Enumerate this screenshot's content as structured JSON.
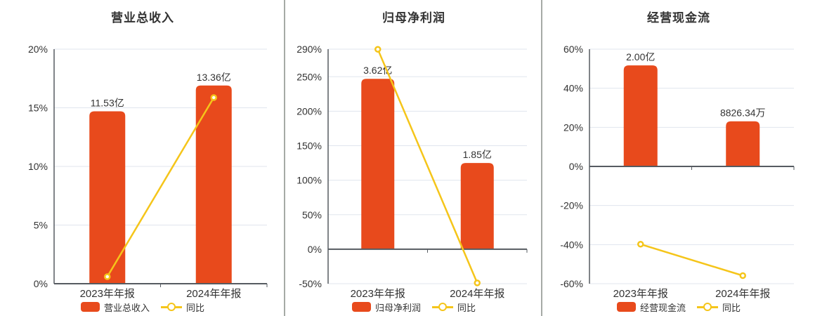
{
  "colors": {
    "bar": "#e84a1c",
    "line": "#f5c51a",
    "grid": "#e0e5ee",
    "axis": "#565b61",
    "text": "#333333",
    "marker_fill": "#ffffff",
    "divider": "#a6aaa6",
    "background": "#ffffff"
  },
  "chart_data": [
    {
      "id": "revenue",
      "type": "bar",
      "title": "营业总收入",
      "categories": [
        "2023年年报",
        "2024年年报"
      ],
      "series": [
        {
          "name": "营业总收入",
          "type": "bar",
          "values": [
            "11.53亿",
            "13.36亿"
          ],
          "bar_heights_on_pct_axis": [
            14.7,
            16.9
          ]
        },
        {
          "name": "同比",
          "type": "line",
          "values_pct": [
            0.6,
            15.87
          ]
        }
      ],
      "ylim": [
        0,
        20
      ],
      "yticks_pct": [
        20,
        15,
        10,
        5,
        0
      ],
      "grid": "on",
      "legend_position": "bottom"
    },
    {
      "id": "net-profit",
      "type": "bar",
      "title": "归母净利润",
      "categories": [
        "2023年年报",
        "2024年年报"
      ],
      "series": [
        {
          "name": "归母净利润",
          "type": "bar",
          "values": [
            "3.62亿",
            "1.85亿"
          ],
          "bar_heights_on_pct_axis": [
            247,
            125
          ]
        },
        {
          "name": "同比",
          "type": "line",
          "values_pct": [
            289.8,
            -48.9
          ]
        }
      ],
      "ylim": [
        -50,
        290
      ],
      "yticks_pct": [
        290,
        250,
        200,
        150,
        100,
        50,
        0,
        -50
      ],
      "grid": "on",
      "legend_position": "bottom"
    },
    {
      "id": "operating-cash-flow",
      "type": "bar",
      "title": "经营现金流",
      "categories": [
        "2023年年报",
        "2024年年报"
      ],
      "series": [
        {
          "name": "经营现金流",
          "type": "bar",
          "values": [
            "2.00亿",
            "8826.34万"
          ],
          "bar_heights_on_pct_axis": [
            51.7,
            23.1
          ]
        },
        {
          "name": "同比",
          "type": "line",
          "values_pct": [
            -39.8,
            -55.87
          ]
        }
      ],
      "ylim": [
        -60,
        60
      ],
      "yticks_pct": [
        60,
        40,
        20,
        0,
        -20,
        -40,
        -60
      ],
      "grid": "on",
      "legend_position": "bottom"
    }
  ]
}
